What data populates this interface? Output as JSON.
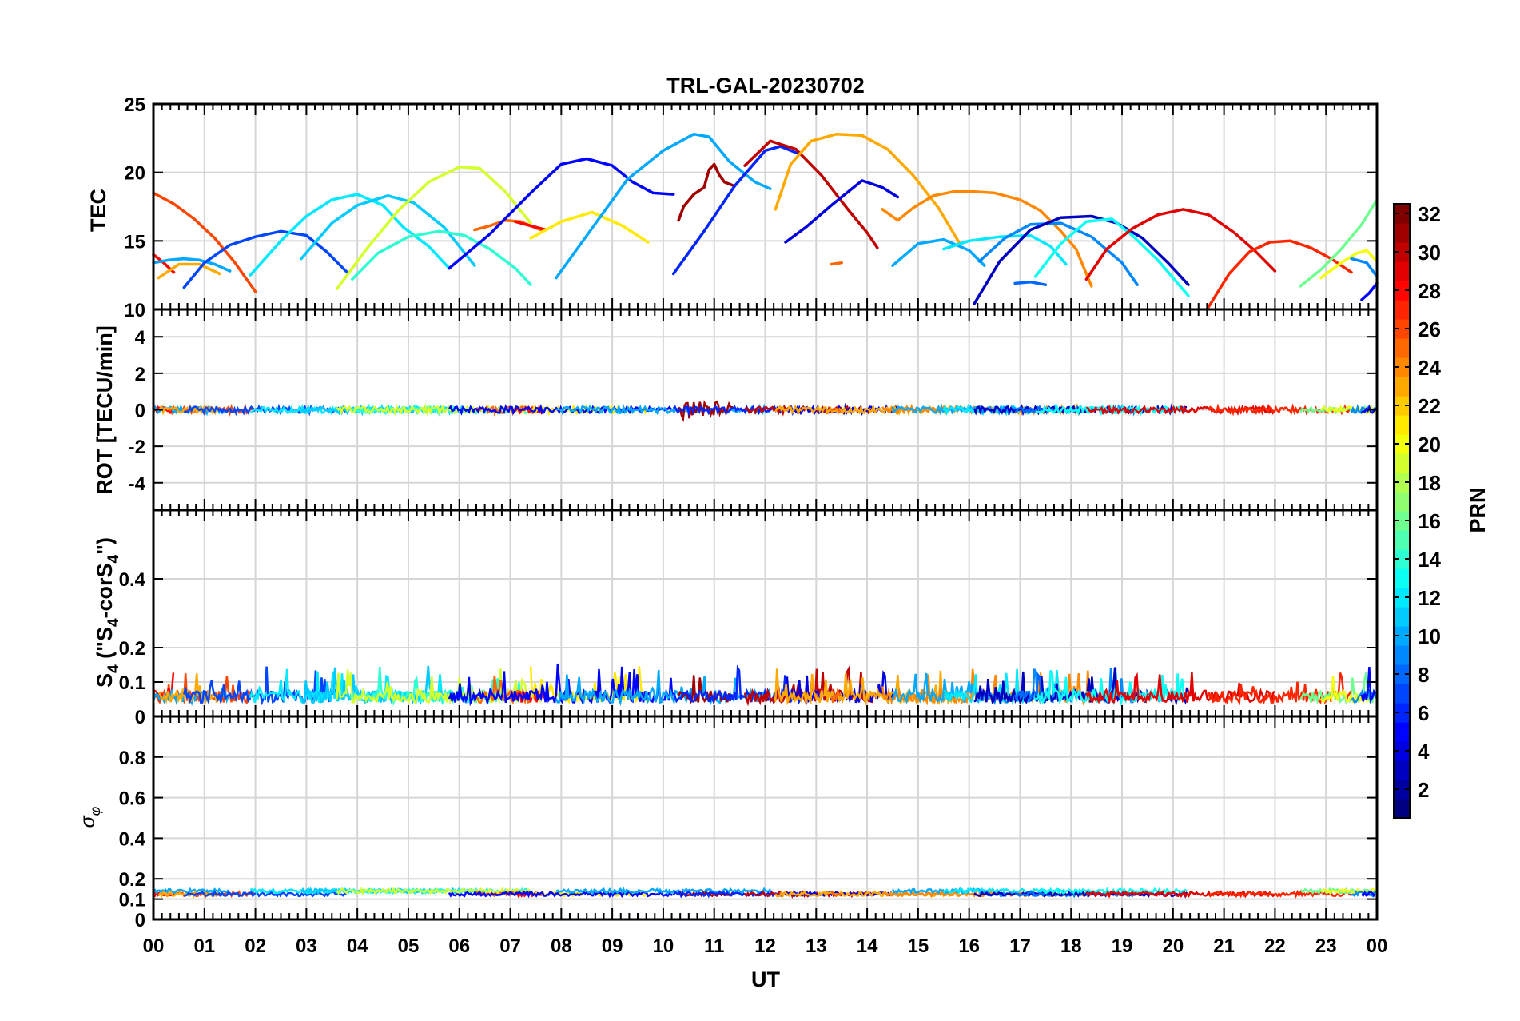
{
  "chart_data": {
    "type": "line",
    "title": "TRL-GAL-20230702",
    "xlabel": "UT",
    "x_ticks": [
      "00",
      "01",
      "02",
      "03",
      "04",
      "05",
      "06",
      "07",
      "08",
      "09",
      "10",
      "11",
      "12",
      "13",
      "14",
      "15",
      "16",
      "17",
      "18",
      "19",
      "20",
      "21",
      "22",
      "23",
      "00"
    ],
    "xlim": [
      0,
      24
    ],
    "grid": true,
    "colorbar": {
      "label": "PRN",
      "colormap": "jet",
      "range": [
        1,
        32
      ],
      "ticks": [
        "2",
        "4",
        "6",
        "8",
        "10",
        "12",
        "14",
        "16",
        "18",
        "20",
        "22",
        "24",
        "26",
        "28",
        "30",
        "32"
      ]
    },
    "panels": [
      {
        "ylabel": "TEC",
        "ylim": [
          10,
          25
        ],
        "yticks": [
          "10",
          "15",
          "20",
          "25"
        ],
        "series": [
          {
            "prn": 26,
            "x": [
              0.0,
              0.4,
              0.8,
              1.2,
              1.6,
              2.0
            ],
            "y": [
              18.5,
              17.7,
              16.6,
              15.2,
              13.4,
              11.3
            ]
          },
          {
            "prn": 28,
            "x": [
              0.0,
              0.2,
              0.4
            ],
            "y": [
              14.0,
              13.4,
              12.7
            ]
          },
          {
            "prn": 10,
            "x": [
              0.0,
              0.3,
              0.6,
              0.9,
              1.2,
              1.5
            ],
            "y": [
              13.4,
              13.6,
              13.7,
              13.6,
              13.3,
              12.8
            ]
          },
          {
            "prn": 23,
            "x": [
              0.1,
              0.5,
              0.9,
              1.3
            ],
            "y": [
              12.3,
              13.3,
              13.3,
              12.6
            ]
          },
          {
            "prn": 7,
            "x": [
              0.6,
              1.0,
              1.5,
              2.0,
              2.5,
              3.0,
              3.4,
              3.8
            ],
            "y": [
              11.6,
              13.4,
              14.7,
              15.3,
              15.7,
              15.4,
              14.2,
              12.7
            ]
          },
          {
            "prn": 12,
            "x": [
              1.9,
              2.5,
              3.0,
              3.5,
              4.0,
              4.5,
              4.9
            ],
            "y": [
              12.5,
              15.0,
              16.8,
              18.0,
              18.4,
              17.6,
              16.0
            ]
          },
          {
            "prn": 12,
            "x": [
              4.9,
              5.4,
              5.8
            ],
            "y": [
              16.0,
              14.6,
              13.0
            ]
          },
          {
            "prn": 11,
            "x": [
              2.9,
              3.5,
              4.0,
              4.6,
              5.1,
              5.7,
              6.3
            ],
            "y": [
              13.7,
              16.3,
              17.6,
              18.3,
              17.8,
              16.0,
              13.2
            ]
          },
          {
            "prn": 14,
            "x": [
              3.9,
              4.4,
              5.0,
              5.6,
              6.1,
              6.6,
              7.1,
              7.4
            ],
            "y": [
              12.2,
              14.1,
              15.3,
              15.7,
              15.4,
              14.4,
              13.0,
              11.8
            ]
          },
          {
            "prn": 19,
            "x": [
              3.6,
              4.2,
              4.8,
              5.4,
              6.0,
              6.4,
              6.9,
              7.4
            ],
            "y": [
              11.5,
              14.5,
              17.2,
              19.3,
              20.4,
              20.3,
              18.6,
              16.3
            ]
          },
          {
            "prn": 25,
            "x": [
              6.3,
              6.6,
              6.9,
              7.2,
              7.6
            ],
            "y": [
              15.8,
              16.1,
              16.5,
              16.4,
              15.8
            ]
          },
          {
            "prn": 28,
            "x": [
              7.1,
              7.4,
              7.7
            ],
            "y": [
              16.4,
              16.1,
              15.8
            ]
          },
          {
            "prn": 21,
            "x": [
              7.4,
              8.0,
              8.6,
              9.2,
              9.7
            ],
            "y": [
              15.2,
              16.4,
              17.1,
              16.1,
              14.9
            ]
          },
          {
            "prn": 5,
            "x": [
              5.8,
              6.6,
              7.4,
              8.0,
              8.5,
              9.0,
              9.4,
              9.8,
              10.2
            ],
            "y": [
              13.0,
              15.5,
              18.5,
              20.6,
              21.0,
              20.5,
              19.3,
              18.5,
              18.4
            ]
          },
          {
            "prn": 10,
            "x": [
              7.9,
              8.6,
              9.3,
              10.0,
              10.6,
              10.9,
              11.3,
              11.8,
              12.1
            ],
            "y": [
              12.3,
              15.9,
              19.5,
              21.6,
              22.8,
              22.6,
              20.8,
              19.3,
              18.8
            ]
          },
          {
            "prn": 31,
            "x": [
              10.3,
              10.4,
              10.6,
              10.8,
              10.9,
              11.0,
              11.1,
              11.2,
              11.4
            ],
            "y": [
              16.5,
              17.5,
              18.4,
              18.9,
              20.2,
              20.6,
              19.8,
              19.3,
              19.0
            ]
          },
          {
            "prn": 6,
            "x": [
              10.2,
              10.8,
              11.4,
              12.0,
              12.3,
              12.7
            ],
            "y": [
              12.6,
              15.7,
              19.0,
              21.6,
              21.9,
              21.3
            ]
          },
          {
            "prn": 30,
            "x": [
              11.6,
              12.1,
              12.6,
              13.1,
              13.6,
              14.0,
              14.2
            ],
            "y": [
              20.5,
              22.3,
              21.7,
              19.8,
              17.4,
              15.6,
              14.5
            ]
          },
          {
            "prn": 4,
            "x": [
              12.4,
              12.8,
              13.3,
              13.9,
              14.3,
              14.6
            ],
            "y": [
              14.9,
              16.0,
              17.6,
              19.4,
              18.9,
              18.2
            ]
          },
          {
            "prn": 23,
            "x": [
              12.2,
              12.5,
              12.9,
              13.4,
              13.9,
              14.4,
              14.9,
              15.4,
              15.8
            ],
            "y": [
              17.3,
              20.6,
              22.3,
              22.8,
              22.7,
              21.7,
              19.8,
              17.4,
              14.9
            ]
          },
          {
            "prn": 24,
            "x": [
              14.3,
              14.6,
              14.9,
              15.3,
              15.7,
              16.1,
              16.5,
              17.0,
              17.4
            ],
            "y": [
              17.3,
              16.5,
              17.4,
              18.3,
              18.6,
              18.6,
              18.5,
              18.0,
              17.2
            ]
          },
          {
            "prn": 24,
            "x": [
              17.4,
              17.8,
              18.1,
              18.4
            ],
            "y": [
              17.2,
              15.7,
              14.4,
              11.7
            ]
          },
          {
            "prn": 25,
            "x": [
              13.3,
              13.5
            ],
            "y": [
              13.3,
              13.4
            ]
          },
          {
            "prn": 10,
            "x": [
              14.5,
              15.0,
              15.5,
              16.0,
              16.3
            ],
            "y": [
              13.2,
              14.8,
              15.1,
              14.3,
              13.2
            ]
          },
          {
            "prn": 12,
            "x": [
              15.5,
              16.0,
              16.6,
              17.2,
              17.6,
              17.9
            ],
            "y": [
              14.4,
              15.0,
              15.3,
              15.4,
              14.6,
              13.3
            ]
          },
          {
            "prn": 9,
            "x": [
              16.2,
              16.7,
              17.2,
              17.8,
              18.4,
              19.0,
              19.3
            ],
            "y": [
              13.5,
              15.2,
              16.2,
              16.3,
              15.3,
              13.4,
              11.8
            ]
          },
          {
            "prn": 3,
            "x": [
              16.1,
              16.6,
              17.2,
              17.8,
              18.4,
              18.9,
              19.4,
              19.9,
              20.3
            ],
            "y": [
              10.4,
              13.5,
              15.8,
              16.7,
              16.8,
              16.3,
              15.2,
              13.4,
              11.8
            ]
          },
          {
            "prn": 8,
            "x": [
              16.9,
              17.2,
              17.5
            ],
            "y": [
              11.9,
              12.0,
              11.8
            ]
          },
          {
            "prn": 13,
            "x": [
              17.3,
              17.8,
              18.3,
              18.8,
              19.2,
              19.7,
              20.3
            ],
            "y": [
              12.4,
              14.8,
              16.4,
              16.6,
              15.4,
              13.6,
              11.0
            ]
          },
          {
            "prn": 29,
            "x": [
              18.3,
              18.7,
              19.2,
              19.7,
              20.2,
              20.7,
              21.2,
              21.6,
              22.0
            ],
            "y": [
              12.2,
              14.4,
              15.9,
              16.9,
              17.3,
              16.9,
              15.6,
              14.3,
              12.8
            ]
          },
          {
            "prn": 27,
            "x": [
              20.7,
              21.1,
              21.5,
              21.9,
              22.3,
              22.7,
              23.1,
              23.5
            ],
            "y": [
              10.2,
              12.6,
              14.2,
              14.9,
              15.0,
              14.5,
              13.7,
              12.7
            ]
          },
          {
            "prn": 16,
            "x": [
              22.5,
              22.9,
              23.3,
              23.7,
              24.0
            ],
            "y": [
              11.7,
              12.9,
              14.4,
              16.2,
              18.0
            ]
          },
          {
            "prn": 20,
            "x": [
              22.9,
              23.3,
              23.6,
              23.8,
              24.0
            ],
            "y": [
              12.3,
              13.4,
              14.1,
              14.3,
              13.5
            ]
          },
          {
            "prn": 9,
            "x": [
              23.5,
              23.8,
              24.0
            ],
            "y": [
              13.7,
              13.4,
              12.4
            ]
          },
          {
            "prn": 5,
            "x": [
              23.7,
              23.85,
              24.0
            ],
            "y": [
              10.7,
              11.2,
              11.9
            ]
          }
        ]
      },
      {
        "ylabel": "ROT [TECU/min]",
        "ylim": [
          -5.5,
          5.5
        ],
        "yticks": [
          "-4",
          "-2",
          "0",
          "2",
          "4"
        ]
      },
      {
        "ylabel": "S4 (\"S4-corS4\")",
        "ylim": [
          0,
          0.6
        ],
        "yticks": [
          "0",
          "0.1",
          "0.2",
          "0.4"
        ]
      },
      {
        "ylabel": "σφ",
        "ylim": [
          0,
          1
        ],
        "yticks": [
          "0",
          "0.1",
          "0.2",
          "0.4",
          "0.6",
          "0.8"
        ]
      }
    ]
  }
}
